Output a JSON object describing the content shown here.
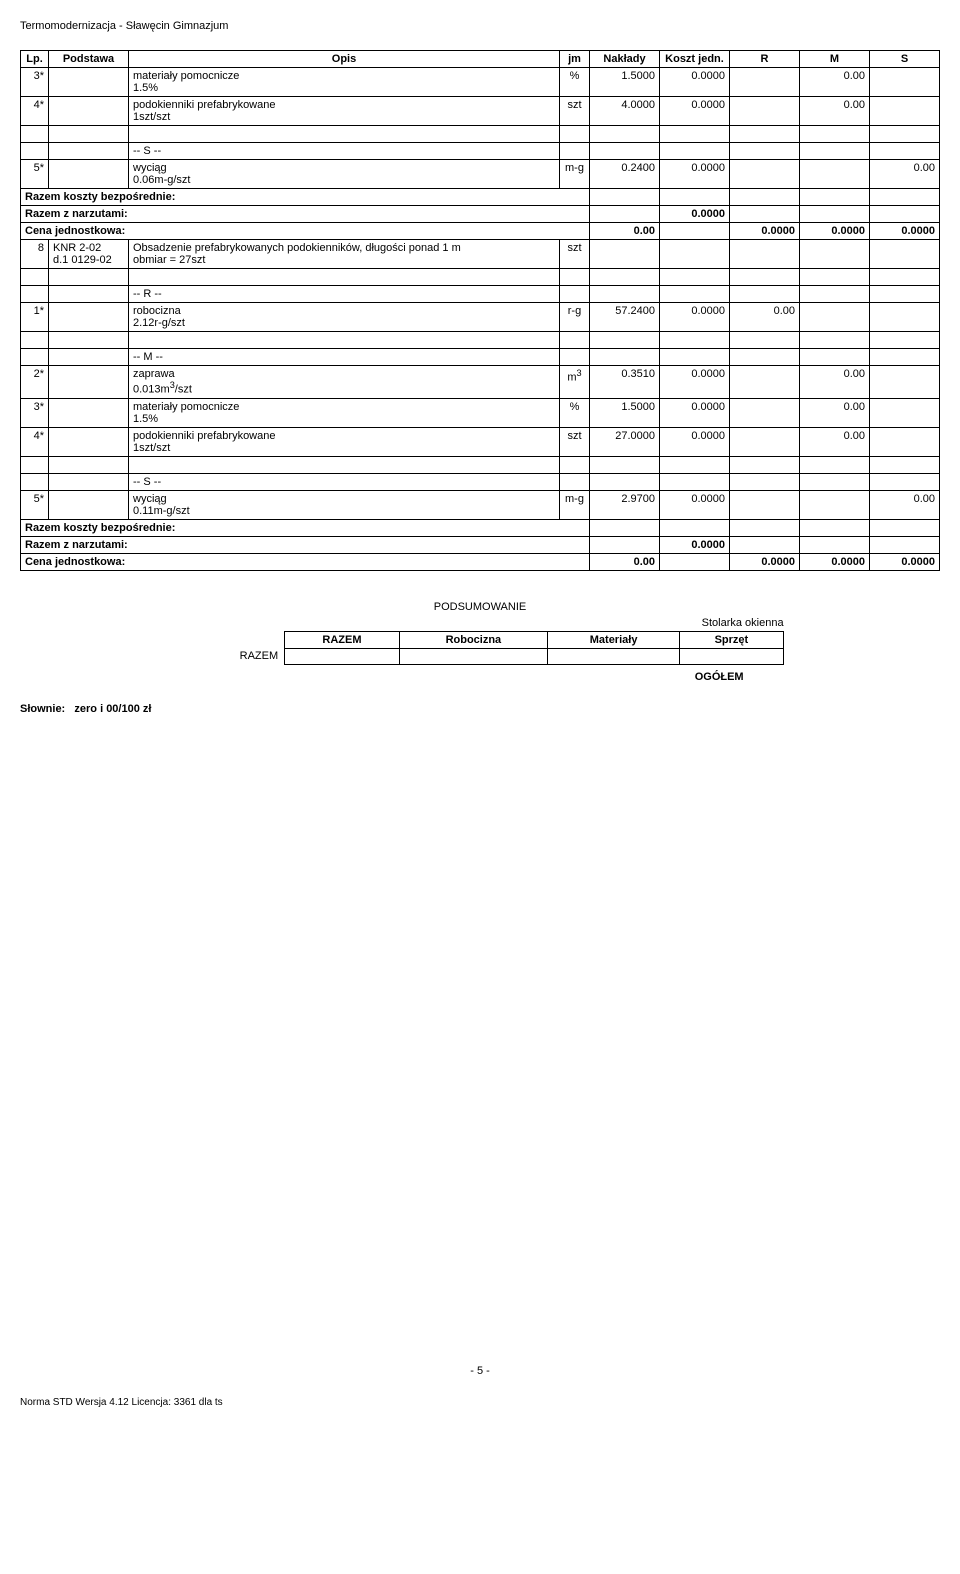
{
  "doc_title": "Termomodernizacja - Sławęcin Gimnazjum",
  "headers": {
    "lp": "Lp.",
    "podstawa": "Podstawa",
    "opis": "Opis",
    "jm": "jm",
    "naklady": "Nakłady",
    "koszt": "Koszt jedn.",
    "r": "R",
    "m": "M",
    "s": "S"
  },
  "rows": [
    {
      "lp": "3*",
      "opis": "materiały pomocnicze\n1.5%",
      "jm": "%",
      "naklady": "1.5000",
      "koszt": "0.0000",
      "m": "0.00"
    },
    {
      "lp": "4*",
      "opis": "podokienniki prefabrykowane\n1szt/szt",
      "jm": "szt",
      "naklady": "4.0000",
      "koszt": "0.0000",
      "m": "0.00"
    },
    {
      "spacer": true
    },
    {
      "opis": "-- S --",
      "section": true
    },
    {
      "lp": "5*",
      "opis": "wyciąg\n0.06m-g/szt",
      "jm": "m-g",
      "naklady": "0.2400",
      "koszt": "0.0000",
      "s": "0.00"
    },
    {
      "label": "Razem koszty bezpośrednie:",
      "full": true
    },
    {
      "label": "Razem z narzutami:",
      "full": true,
      "koszt": "0.0000"
    },
    {
      "label": "Cena jednostkowa:",
      "full": true,
      "naklady": "0.00",
      "r": "0.0000",
      "m": "0.0000",
      "s": "0.0000"
    },
    {
      "lp": "8",
      "podstawa": "KNR 2-02\nd.1 0129-02",
      "opis": "Obsadzenie prefabrykowanych podokienników, długości ponad 1 m\nobmiar = 27szt",
      "jm": "szt"
    },
    {
      "spacer": true
    },
    {
      "opis": "-- R --",
      "section": true
    },
    {
      "lp": "1*",
      "opis": "robocizna\n2.12r-g/szt",
      "jm": "r-g",
      "naklady": "57.2400",
      "koszt": "0.0000",
      "r": "0.00"
    },
    {
      "spacer": true
    },
    {
      "opis": "-- M --",
      "section": true
    },
    {
      "lp": "2*",
      "opis": "zaprawa\n0.013m3/szt",
      "jm": "m3",
      "naklady": "0.3510",
      "koszt": "0.0000",
      "m": "0.00"
    },
    {
      "lp": "3*",
      "opis": "materiały pomocnicze\n1.5%",
      "jm": "%",
      "naklady": "1.5000",
      "koszt": "0.0000",
      "m": "0.00"
    },
    {
      "lp": "4*",
      "opis": "podokienniki prefabrykowane\n1szt/szt",
      "jm": "szt",
      "naklady": "27.0000",
      "koszt": "0.0000",
      "m": "0.00"
    },
    {
      "spacer": true
    },
    {
      "opis": "-- S --",
      "section": true
    },
    {
      "lp": "5*",
      "opis": "wyciąg\n0.11m-g/szt",
      "jm": "m-g",
      "naklady": "2.9700",
      "koszt": "0.0000",
      "s": "0.00"
    },
    {
      "label": "Razem koszty bezpośrednie:",
      "full": true
    },
    {
      "label": "Razem z narzutami:",
      "full": true,
      "koszt": "0.0000"
    },
    {
      "label": "Cena jednostkowa:",
      "full": true,
      "naklady": "0.00",
      "r": "0.0000",
      "m": "0.0000",
      "s": "0.0000"
    }
  ],
  "summary": {
    "title": "PODSUMOWANIE",
    "caption": "Stolarka okienna",
    "cols": [
      "RAZEM",
      "Robocizna",
      "Materiały",
      "Sprzęt"
    ],
    "rowlabel": "RAZEM",
    "ogolem": "OGÓŁEM"
  },
  "slownie_label": "Słownie:",
  "slownie_value": "zero i 00/100 zł",
  "page_num": "- 5 -",
  "footer": "Norma STD Wersja 4.12 Licencja: 3361 dla ts"
}
